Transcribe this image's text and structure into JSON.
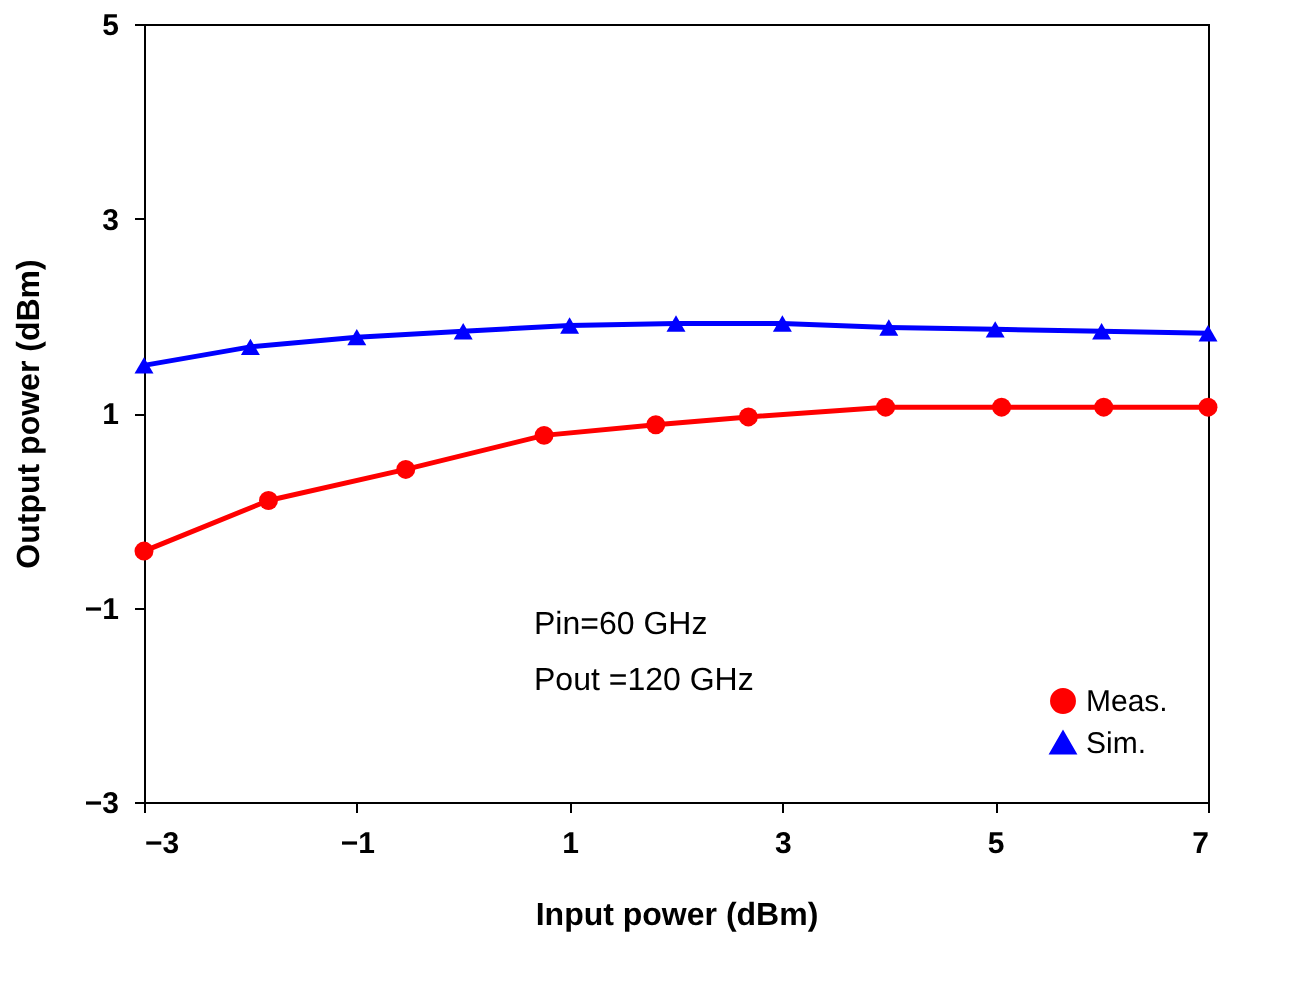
{
  "chart_data": {
    "type": "line",
    "xlabel": "Input power (dBm)",
    "ylabel": "Output  power (dBm)",
    "xlim": [
      -3,
      7
    ],
    "xticks": [
      -3,
      -1,
      1,
      3,
      5,
      7
    ],
    "ylim": [
      -3,
      5
    ],
    "yticks": [
      -3,
      -1,
      1,
      3,
      5
    ],
    "grid": false,
    "legend": "bottom right",
    "annotations": [
      "Pin=60 GHz",
      "Pout =120 GHz"
    ],
    "series": [
      {
        "name": "Meas.",
        "color": "#ff0000",
        "marker": "circle",
        "x": [
          -3,
          -1.83,
          -0.54,
          0.76,
          1.81,
          2.68,
          3.97,
          5.06,
          6.02,
          7
        ],
        "values": [
          -0.42,
          0.1,
          0.42,
          0.77,
          0.88,
          0.96,
          1.06,
          1.06,
          1.06,
          1.06
        ]
      },
      {
        "name": "Sim.",
        "color": "#0000ff",
        "marker": "triangle",
        "x": [
          -3,
          -2,
          -1,
          0,
          1,
          2,
          3,
          4,
          5,
          6,
          7
        ],
        "values": [
          1.49,
          1.68,
          1.78,
          1.84,
          1.9,
          1.92,
          1.92,
          1.88,
          1.86,
          1.84,
          1.82
        ]
      }
    ]
  }
}
